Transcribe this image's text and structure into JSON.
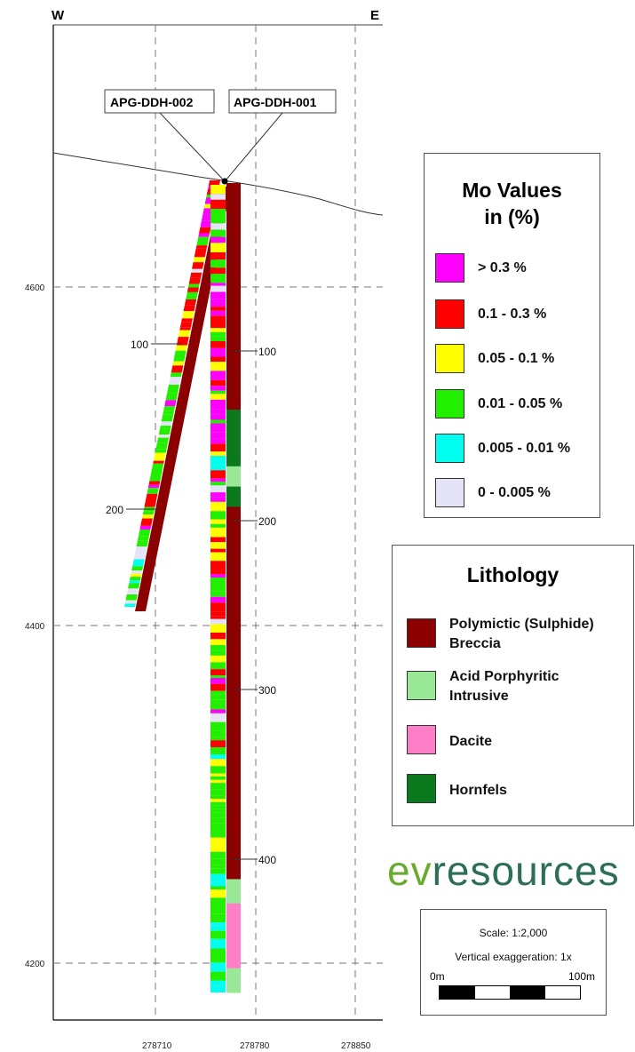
{
  "compass": {
    "west": "W",
    "east": "E"
  },
  "holes": [
    {
      "name": "APG-DDH-002",
      "depth_ticks": [
        "100",
        "200"
      ]
    },
    {
      "name": "APG-DDH-001",
      "depth_ticks": [
        "100",
        "200",
        "300",
        "400"
      ]
    }
  ],
  "elevation_ticks": [
    "4600",
    "4400",
    "4200"
  ],
  "easting_ticks": [
    "278710",
    "278780",
    "278850"
  ],
  "mo_legend": {
    "title": "Mo Values in (%)",
    "items": [
      {
        "label": "> 0.3 %",
        "color": "#ff00ff"
      },
      {
        "label": "0.1 - 0.3 %",
        "color": "#ff0000"
      },
      {
        "label": "0.05 - 0.1 %",
        "color": "#ffff00"
      },
      {
        "label": "0.01 - 0.05 %",
        "color": "#22ee00"
      },
      {
        "label": "0.005 - 0.01 %",
        "color": "#00ffee"
      },
      {
        "label": "0 - 0.005 %",
        "color": "#e4e4f6"
      }
    ]
  },
  "lith_legend": {
    "title": "Lithology",
    "items": [
      {
        "label": "Polymictic (Sulphide) Breccia",
        "color": "#8b0000"
      },
      {
        "label": "Acid Porphyritic Intrusive",
        "color": "#98e898"
      },
      {
        "label": "Dacite",
        "color": "#ff7ec8"
      },
      {
        "label": "Hornfels",
        "color": "#0b7a1f"
      }
    ]
  },
  "logo": {
    "part1": "ev",
    "part2": "resources"
  },
  "scale": {
    "scale_text": "Scale: 1:2,000",
    "exaggeration_text": "Vertical exaggeration: 1x",
    "start_label": "0m",
    "end_label": "100m"
  }
}
